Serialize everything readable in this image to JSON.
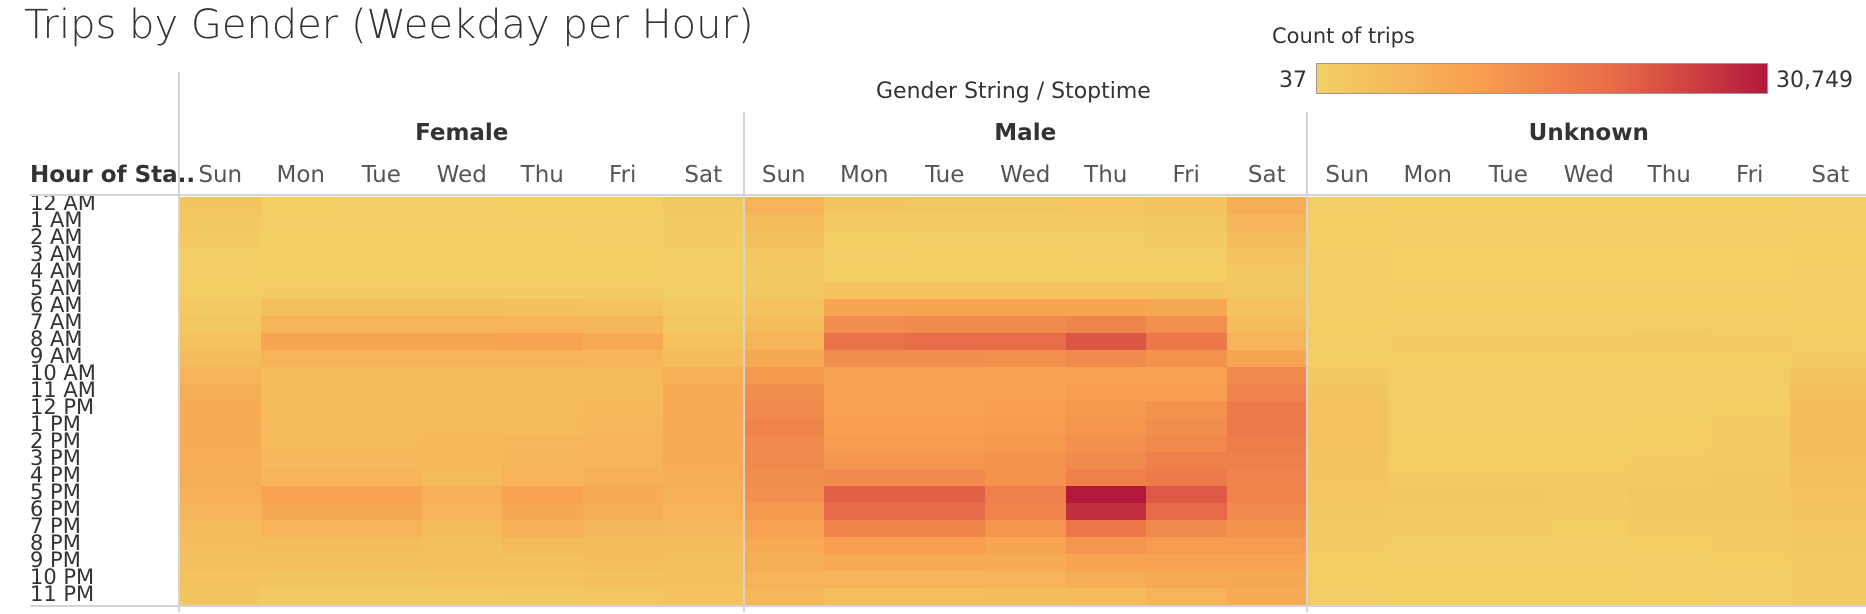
{
  "title": "Trips by Gender (Weekday per Hour)",
  "legend": {
    "title": "Count of trips",
    "min_label": "37",
    "max_label": "30,749",
    "gradient": [
      "#f2d064",
      "#f8a250",
      "#e86a48",
      "#b2183c"
    ]
  },
  "header": {
    "dimension_label": "Gender String  /  Stoptime",
    "row_header": "Hour of Sta.."
  },
  "chart_data": {
    "type": "heatmap",
    "title": "Trips by Gender (Weekday per Hour)",
    "columns_dimension": "Gender String / Stoptime",
    "rows_dimension": "Hour of Sta..",
    "value_label": "Count of trips",
    "value_range": [
      37,
      30749
    ],
    "groups": [
      "Female",
      "Male",
      "Unknown"
    ],
    "days": [
      "Sun",
      "Mon",
      "Tue",
      "Wed",
      "Thu",
      "Fri",
      "Sat"
    ],
    "hours": [
      "12 AM",
      "1 AM",
      "2 AM",
      "3 AM",
      "4 AM",
      "5 AM",
      "6 AM",
      "7 AM",
      "8 AM",
      "9 AM",
      "10 AM",
      "11 AM",
      "12 PM",
      "1 PM",
      "2 PM",
      "3 PM",
      "4 PM",
      "5 PM",
      "6 PM",
      "7 PM",
      "8 PM",
      "9 PM",
      "10 PM",
      "11 PM"
    ],
    "values": {
      "Female": [
        [
          2500,
          1000,
          800,
          800,
          900,
          1000,
          2000
        ],
        [
          1800,
          700,
          600,
          600,
          700,
          800,
          1500
        ],
        [
          1200,
          500,
          400,
          400,
          500,
          600,
          1100
        ],
        [
          800,
          300,
          300,
          300,
          300,
          400,
          800
        ],
        [
          700,
          400,
          400,
          400,
          400,
          400,
          600
        ],
        [
          900,
          1200,
          1200,
          1200,
          1200,
          1100,
          800
        ],
        [
          1500,
          3500,
          3500,
          3500,
          3400,
          3200,
          1300
        ],
        [
          2000,
          6500,
          6500,
          6500,
          6500,
          5800,
          2000
        ],
        [
          3000,
          9500,
          9500,
          9500,
          10500,
          8500,
          3000
        ],
        [
          4500,
          6500,
          6500,
          6500,
          6500,
          6000,
          4500
        ],
        [
          6500,
          4500,
          4500,
          4500,
          4500,
          4600,
          7000
        ],
        [
          7500,
          4200,
          4300,
          4400,
          4400,
          4600,
          8000
        ],
        [
          8000,
          4500,
          4500,
          4700,
          4700,
          5200,
          8500
        ],
        [
          8200,
          4800,
          4800,
          5000,
          5000,
          5500,
          8500
        ],
        [
          8000,
          5000,
          5000,
          5200,
          5500,
          6000,
          8200
        ],
        [
          7800,
          5300,
          5300,
          5200,
          5800,
          6500,
          8000
        ],
        [
          7500,
          6000,
          6000,
          5000,
          6500,
          7000,
          7500
        ],
        [
          7000,
          10000,
          10000,
          7000,
          10000,
          8000,
          7000
        ],
        [
          6000,
          9000,
          9000,
          6500,
          9000,
          7500,
          6500
        ],
        [
          5000,
          6500,
          6500,
          5000,
          7000,
          5800,
          5500
        ],
        [
          4000,
          4500,
          4500,
          3800,
          4800,
          4500,
          4500
        ],
        [
          3500,
          3500,
          3500,
          3300,
          3800,
          4000,
          3800
        ],
        [
          3000,
          2500,
          2500,
          2600,
          2800,
          3300,
          3300
        ],
        [
          2500,
          1500,
          1500,
          1600,
          1800,
          2300,
          3000
        ]
      ],
      "Male": [
        [
          6500,
          2500,
          2000,
          2000,
          2200,
          3000,
          7500
        ],
        [
          5000,
          1500,
          1200,
          1200,
          1300,
          2000,
          6000
        ],
        [
          3500,
          900,
          700,
          700,
          800,
          1200,
          4500
        ],
        [
          2200,
          600,
          500,
          500,
          600,
          800,
          3000
        ],
        [
          1800,
          900,
          900,
          900,
          900,
          900,
          2000
        ],
        [
          2000,
          3000,
          3000,
          3000,
          3000,
          2800,
          2000
        ],
        [
          3000,
          9500,
          9500,
          9500,
          9500,
          9000,
          3000
        ],
        [
          4500,
          14000,
          14500,
          14500,
          15500,
          13500,
          4500
        ],
        [
          6500,
          19000,
          20000,
          20000,
          23000,
          18000,
          6500
        ],
        [
          9000,
          14000,
          14000,
          13500,
          14500,
          13000,
          9500
        ],
        [
          12000,
          10000,
          10000,
          10000,
          10500,
          10500,
          14500
        ],
        [
          14000,
          10000,
          10000,
          10000,
          11000,
          11000,
          16000
        ],
        [
          15000,
          10500,
          10500,
          11000,
          12000,
          13000,
          17500
        ],
        [
          15500,
          11000,
          11000,
          11500,
          12500,
          14000,
          17500
        ],
        [
          15000,
          11500,
          11500,
          12000,
          13500,
          15000,
          17000
        ],
        [
          14500,
          12500,
          12500,
          13000,
          14500,
          16500,
          16500
        ],
        [
          14000,
          14500,
          14500,
          13000,
          16500,
          17500,
          16000
        ],
        [
          13500,
          21500,
          21500,
          16500,
          30749,
          22500,
          15500
        ],
        [
          12000,
          20500,
          20500,
          15500,
          28000,
          20500,
          14500
        ],
        [
          10500,
          15500,
          15500,
          12500,
          18000,
          15000,
          13000
        ],
        [
          8500,
          11000,
          11000,
          9500,
          12500,
          11500,
          11500
        ],
        [
          7500,
          8500,
          8500,
          8000,
          9500,
          10000,
          10000
        ],
        [
          6500,
          6500,
          6500,
          6500,
          7500,
          8500,
          9000
        ],
        [
          5500,
          4000,
          4000,
          4500,
          5000,
          6500,
          8000
        ]
      ],
      "Unknown": [
        [
          700,
          300,
          300,
          300,
          300,
          300,
          800
        ],
        [
          500,
          200,
          200,
          200,
          200,
          200,
          600
        ],
        [
          300,
          150,
          150,
          150,
          150,
          150,
          400
        ],
        [
          200,
          100,
          100,
          100,
          100,
          100,
          300
        ],
        [
          150,
          100,
          100,
          100,
          100,
          100,
          200
        ],
        [
          150,
          200,
          200,
          200,
          200,
          200,
          150
        ],
        [
          250,
          500,
          500,
          500,
          500,
          500,
          250
        ],
        [
          400,
          800,
          800,
          800,
          800,
          800,
          400
        ],
        [
          600,
          1200,
          1200,
          1200,
          1300,
          1100,
          600
        ],
        [
          1000,
          900,
          900,
          900,
          900,
          900,
          1200
        ],
        [
          1800,
          600,
          600,
          600,
          600,
          700,
          2500
        ],
        [
          2500,
          600,
          600,
          600,
          600,
          800,
          3500
        ],
        [
          3000,
          700,
          700,
          700,
          800,
          1000,
          4200
        ],
        [
          3200,
          800,
          800,
          800,
          900,
          1200,
          4500
        ],
        [
          3000,
          900,
          900,
          900,
          1000,
          1400,
          4300
        ],
        [
          2800,
          1000,
          1000,
          1000,
          1200,
          1600,
          4000
        ],
        [
          2500,
          1200,
          1200,
          1100,
          1400,
          1800,
          3500
        ],
        [
          2200,
          1800,
          1800,
          1500,
          2000,
          2000,
          3000
        ],
        [
          1800,
          1600,
          1600,
          1300,
          1800,
          1800,
          2600
        ],
        [
          1500,
          1200,
          1200,
          1000,
          1300,
          1400,
          2200
        ],
        [
          1200,
          800,
          800,
          800,
          900,
          1100,
          1800
        ],
        [
          1000,
          600,
          600,
          600,
          700,
          900,
          1500
        ],
        [
          900,
          500,
          500,
          500,
          600,
          800,
          1300
        ],
        [
          800,
          300,
          300,
          300,
          400,
          600,
          1100
        ]
      ]
    }
  }
}
